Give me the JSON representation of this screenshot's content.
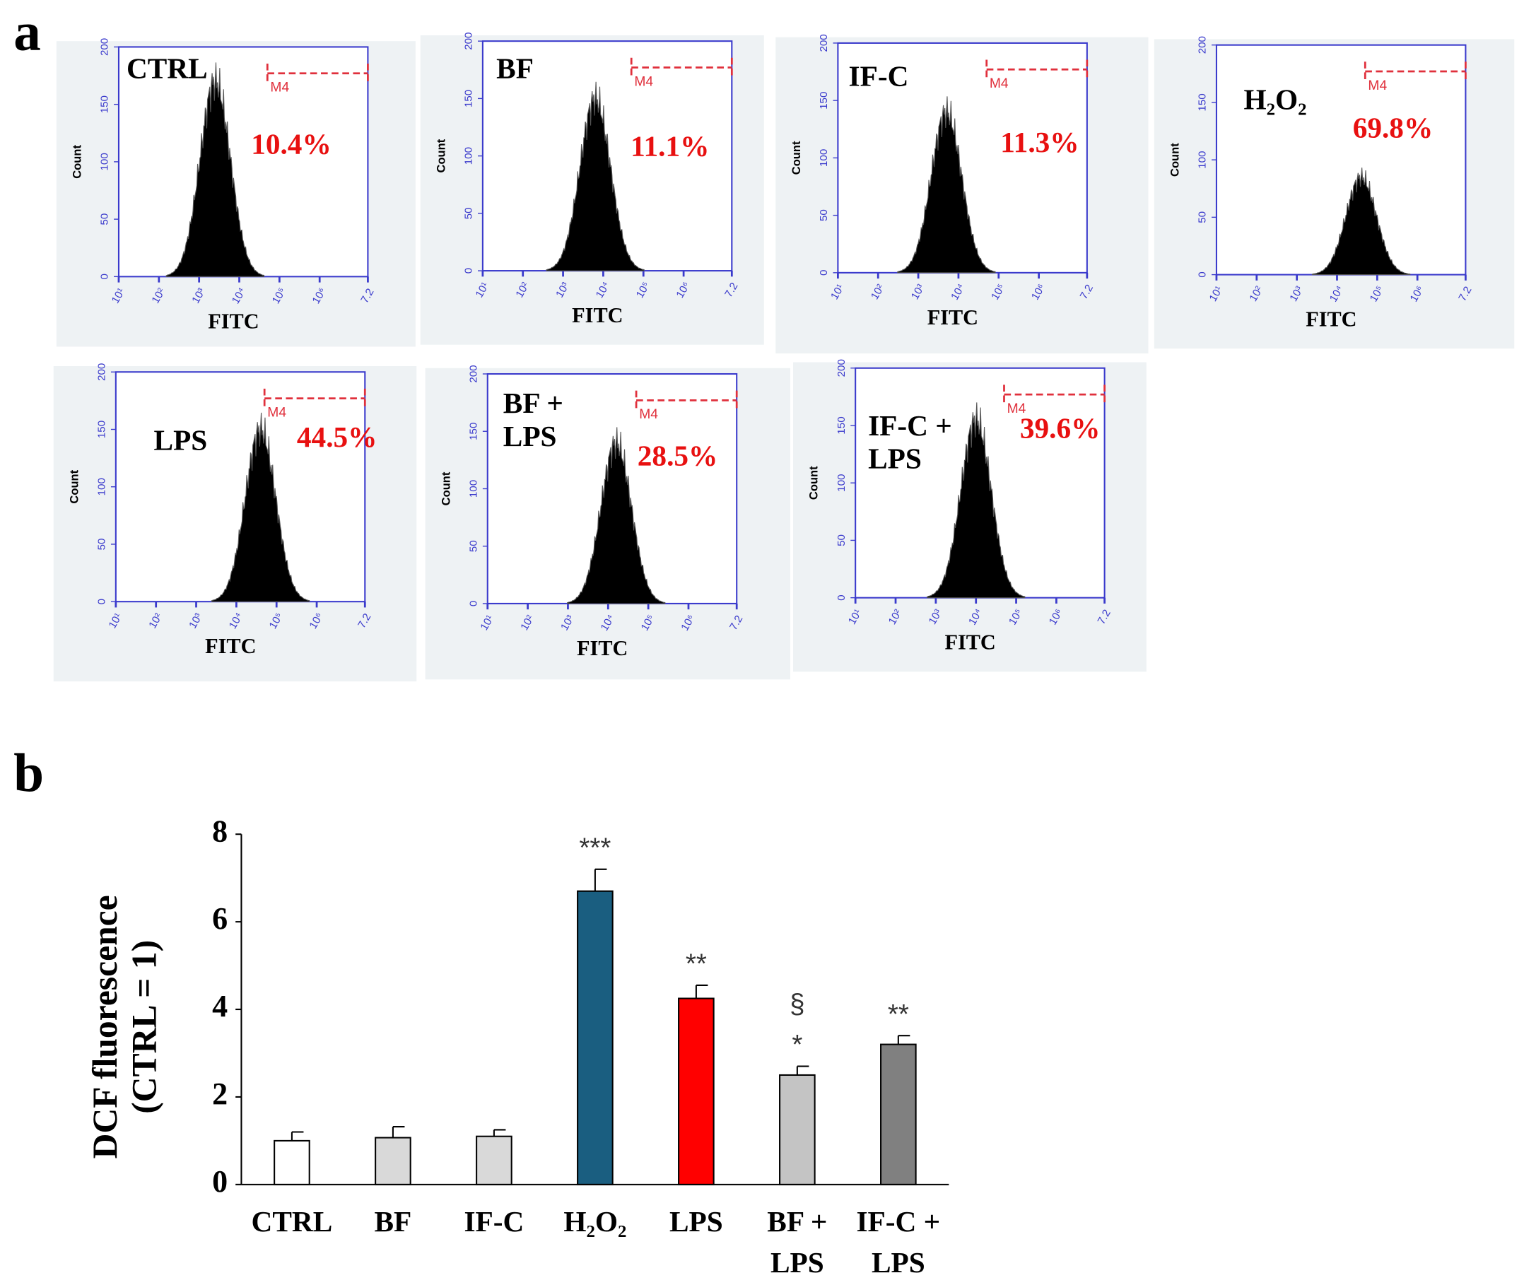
{
  "panel_labels": [
    "a",
    "b"
  ],
  "chart_data": [
    {
      "type": "density",
      "title": "CTRL",
      "annotation": "10.4%",
      "xlabel": "FITC",
      "ylabel": "Count",
      "xlim": [
        1,
        7.2
      ],
      "ylim": [
        0,
        200
      ],
      "xticks": [
        {
          "value": 1,
          "label": "10¹"
        },
        {
          "value": 2,
          "label": "10²"
        },
        {
          "value": 3,
          "label": "10³"
        },
        {
          "value": 4,
          "label": "10⁴"
        },
        {
          "value": 5,
          "label": "10⁵"
        },
        {
          "value": 6,
          "label": "10⁶"
        },
        7.2
      ],
      "yticks": [
        0,
        50,
        100,
        150,
        200
      ],
      "peak": {
        "x": 3.4,
        "count": 170
      },
      "gate": {
        "label": "M4",
        "x": [
          4.7,
          7.2
        ],
        "count": 177
      }
    },
    {
      "type": "density",
      "title": "BF",
      "annotation": "11.1%",
      "xlabel": "FITC",
      "ylabel": "Count",
      "xlim": [
        1,
        7.2
      ],
      "ylim": [
        0,
        200
      ],
      "xticks": [
        {
          "value": 1,
          "label": "10¹"
        },
        {
          "value": 2,
          "label": "10²"
        },
        {
          "value": 3,
          "label": "10³"
        },
        {
          "value": 4,
          "label": "10⁴"
        },
        {
          "value": 5,
          "label": "10⁵"
        },
        {
          "value": 6,
          "label": "10⁶"
        },
        7.2
      ],
      "yticks": [
        0,
        50,
        100,
        150,
        200
      ],
      "peak": {
        "x": 3.8,
        "count": 150
      },
      "gate": {
        "label": "M4",
        "x": [
          4.7,
          7.2
        ],
        "count": 177
      }
    },
    {
      "type": "density",
      "title": "IF-C",
      "annotation": "11.3%",
      "xlabel": "FITC",
      "ylabel": "Count",
      "xlim": [
        1,
        7.2
      ],
      "ylim": [
        0,
        200
      ],
      "xticks": [
        {
          "value": 1,
          "label": "10¹"
        },
        {
          "value": 2,
          "label": "10²"
        },
        {
          "value": 3,
          "label": "10³"
        },
        {
          "value": 4,
          "label": "10⁴"
        },
        {
          "value": 5,
          "label": "10⁵"
        },
        {
          "value": 6,
          "label": "10⁶"
        },
        7.2
      ],
      "yticks": [
        0,
        50,
        100,
        150,
        200
      ],
      "peak": {
        "x": 3.7,
        "count": 140
      },
      "gate": {
        "label": "M4",
        "x": [
          4.7,
          7.2
        ],
        "count": 177
      }
    },
    {
      "type": "density",
      "title": "H₂O₂",
      "annotation": "69.8%",
      "xlabel": "FITC",
      "ylabel": "Count",
      "xlim": [
        1,
        7.2
      ],
      "ylim": [
        0,
        200
      ],
      "xticks": [
        {
          "value": 1,
          "label": "10¹"
        },
        {
          "value": 2,
          "label": "10²"
        },
        {
          "value": 3,
          "label": "10³"
        },
        {
          "value": 4,
          "label": "10⁴"
        },
        {
          "value": 5,
          "label": "10⁵"
        },
        {
          "value": 6,
          "label": "10⁶"
        },
        7.2
      ],
      "yticks": [
        0,
        50,
        100,
        150,
        200
      ],
      "peak": {
        "x": 4.6,
        "count": 85
      },
      "gate": {
        "label": "M4",
        "x": [
          4.7,
          7.2
        ],
        "count": 177
      }
    },
    {
      "type": "density",
      "title": "LPS",
      "annotation": "44.5%",
      "xlabel": "FITC",
      "ylabel": "Count",
      "xlim": [
        1,
        7.2
      ],
      "ylim": [
        0,
        200
      ],
      "xticks": [
        {
          "value": 1,
          "label": "10¹"
        },
        {
          "value": 2,
          "label": "10²"
        },
        {
          "value": 3,
          "label": "10³"
        },
        {
          "value": 4,
          "label": "10⁴"
        },
        {
          "value": 5,
          "label": "10⁵"
        },
        {
          "value": 6,
          "label": "10⁶"
        },
        7.2
      ],
      "yticks": [
        0,
        50,
        100,
        150,
        200
      ],
      "peak": {
        "x": 4.6,
        "count": 150
      },
      "gate": {
        "label": "M4",
        "x": [
          4.7,
          7.2
        ],
        "count": 177
      }
    },
    {
      "type": "density",
      "title": "BF + LPS",
      "annotation": "28.5%",
      "xlabel": "FITC",
      "ylabel": "Count",
      "xlim": [
        1,
        7.2
      ],
      "ylim": [
        0,
        200
      ],
      "xticks": [
        {
          "value": 1,
          "label": "10¹"
        },
        {
          "value": 2,
          "label": "10²"
        },
        {
          "value": 3,
          "label": "10³"
        },
        {
          "value": 4,
          "label": "10⁴"
        },
        {
          "value": 5,
          "label": "10⁵"
        },
        {
          "value": 6,
          "label": "10⁶"
        },
        7.2
      ],
      "yticks": [
        0,
        50,
        100,
        150,
        200
      ],
      "peak": {
        "x": 4.2,
        "count": 140
      },
      "gate": {
        "label": "M4",
        "x": [
          4.7,
          7.2
        ],
        "count": 177
      }
    },
    {
      "type": "density",
      "title": "IF-C + LPS",
      "annotation": "39.6%",
      "xlabel": "FITC",
      "ylabel": "Count",
      "xlim": [
        1,
        7.2
      ],
      "ylim": [
        0,
        200
      ],
      "xticks": [
        {
          "value": 1,
          "label": "10¹"
        },
        {
          "value": 2,
          "label": "10²"
        },
        {
          "value": 3,
          "label": "10³"
        },
        {
          "value": 4,
          "label": "10⁴"
        },
        {
          "value": 5,
          "label": "10⁵"
        },
        {
          "value": 6,
          "label": "10⁶"
        },
        7.2
      ],
      "yticks": [
        0,
        50,
        100,
        150,
        200
      ],
      "peak": {
        "x": 4.0,
        "count": 155
      },
      "gate": {
        "label": "M4",
        "x": [
          4.7,
          7.2
        ],
        "count": 177
      }
    },
    {
      "type": "bar",
      "ylabel": "DCF fluorescence (CTRL = 1)",
      "categories": [
        "CTRL",
        "BF",
        "IF-C",
        "H₂O₂",
        "LPS",
        "BF + LPS",
        "IF-C + LPS"
      ],
      "values": [
        1.0,
        1.07,
        1.1,
        6.7,
        4.25,
        2.5,
        3.2
      ],
      "errors": [
        0.2,
        0.25,
        0.15,
        0.5,
        0.3,
        0.2,
        0.2
      ],
      "colors": [
        "#ffffff",
        "#d9d9d9",
        "#d9d9d9",
        "#1a5e80",
        "#ff0000",
        "#c4c4c4",
        "#808080"
      ],
      "annotations": [
        [],
        [],
        [],
        [
          "***"
        ],
        [
          "**"
        ],
        [
          "§",
          "*"
        ],
        [
          "**"
        ]
      ],
      "ylim": [
        0,
        8
      ],
      "yticks": [
        0,
        2,
        4,
        6,
        8
      ]
    }
  ]
}
